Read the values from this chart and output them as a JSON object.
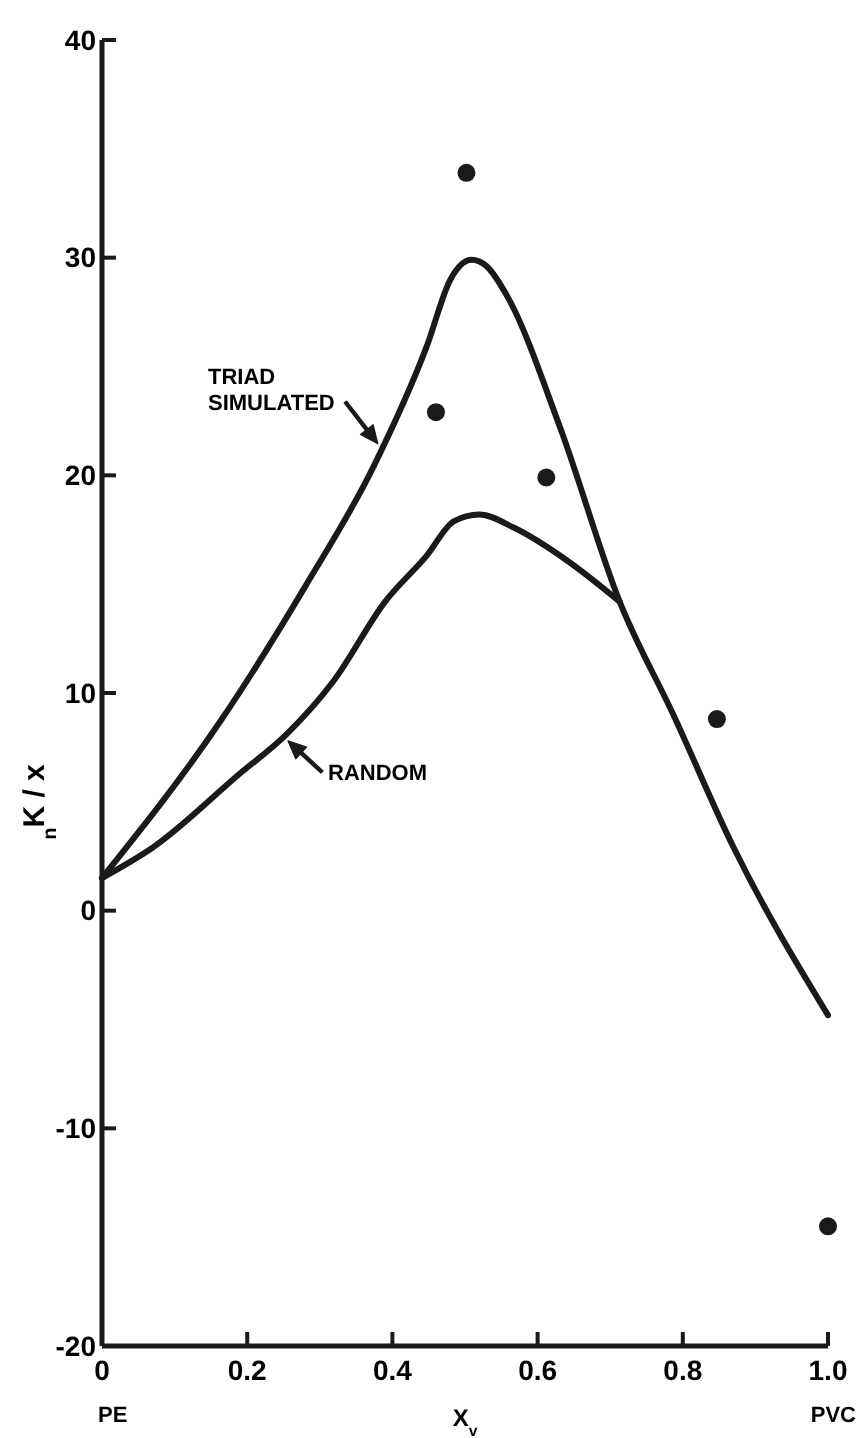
{
  "chart_data": {
    "type": "line",
    "xlabel": "X$_{v}$",
    "ylabel": "$_{n}$K / x",
    "xlim": [
      0,
      1.0
    ],
    "ylim": [
      -20,
      40
    ],
    "xticks": [
      0,
      0.2,
      0.4,
      0.6,
      0.8,
      {
        "value": 1.0,
        "label": "1.0"
      }
    ],
    "yticks": [
      -20,
      -10,
      0,
      10,
      20,
      30,
      40
    ],
    "grid": false,
    "legend": false,
    "marker": "none",
    "line_style": "solid",
    "annotations": [
      "PE",
      "PVC"
    ],
    "series": [
      {
        "name": "TRIAD SIMULATED",
        "color": "#1a1a1a",
        "x": [
          0,
          0.163,
          0.28,
          0.374,
          0.447,
          0.48,
          0.509,
          0.53,
          0.557,
          0.631,
          0.713,
          0.787,
          0.87,
          1.0
        ],
        "values": [
          1.5,
          8.7,
          14.9,
          20.4,
          25.9,
          29.0,
          29.9,
          29.6,
          28.3,
          22.2,
          14.2,
          9.0,
          2.9,
          -4.8
        ]
      },
      {
        "name": "RANDOM",
        "color": "#1a1a1a",
        "x": [
          0,
          0.07,
          0.19,
          0.254,
          0.32,
          0.39,
          0.447,
          0.485,
          0.52,
          0.567,
          0.64,
          0.713
        ],
        "values": [
          1.5,
          2.9,
          6.3,
          8.1,
          10.6,
          14.2,
          16.3,
          17.9,
          18.2,
          17.6,
          16.1,
          14.2
        ]
      },
      {
        "type": "scatter",
        "marker": "circle",
        "color": "#1a1a1a",
        "x": [
          0.46,
          0.502,
          0.612,
          0.847,
          1.0
        ],
        "values": [
          22.9,
          33.9,
          19.9,
          8.8,
          -14.5
        ]
      }
    ]
  }
}
